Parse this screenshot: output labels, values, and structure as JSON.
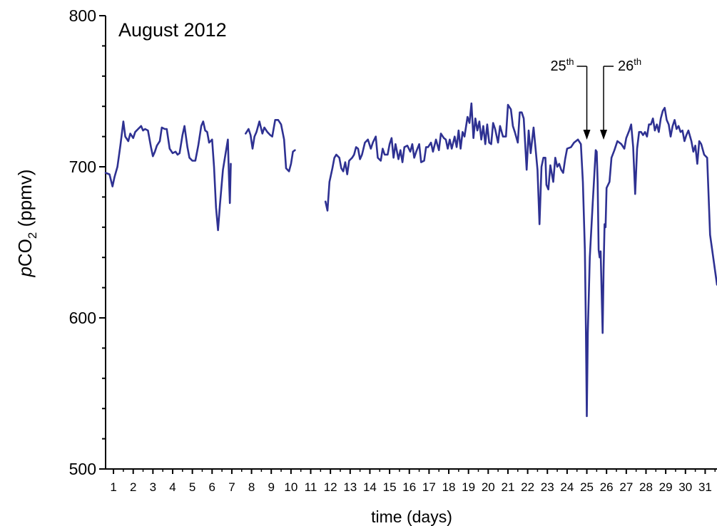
{
  "chart_data": {
    "type": "line",
    "title": "August 2012",
    "xlabel": "time (days)",
    "ylabel": {
      "italic_prefix": "p",
      "main": "CO",
      "subscript": "2",
      "suffix": " (ppmv)"
    },
    "xlim": [
      0.6,
      31.6
    ],
    "ylim": [
      500,
      800
    ],
    "y_major_ticks": [
      500,
      600,
      700,
      800
    ],
    "y_minor_step": 20,
    "x_ticks": [
      1,
      2,
      3,
      4,
      5,
      6,
      7,
      8,
      9,
      10,
      11,
      12,
      13,
      14,
      15,
      16,
      17,
      18,
      19,
      20,
      21,
      22,
      23,
      24,
      25,
      26,
      27,
      28,
      29,
      30,
      31
    ],
    "x_tick_labels": [
      "1",
      "2",
      "3",
      "4",
      "5",
      "6",
      "7",
      "8",
      "9",
      "10",
      "11",
      "12",
      "13",
      "14",
      "15",
      "16",
      "17",
      "18",
      "19",
      "20",
      "21",
      "22",
      "23",
      "24",
      "25",
      "26",
      "27",
      "28",
      "29",
      "30",
      "31"
    ],
    "grid": false,
    "color": "#2E3192",
    "annotations": [
      {
        "base": "25",
        "sup": "th",
        "x": 25.0
      },
      {
        "base": "26",
        "sup": "th",
        "x": 25.85
      }
    ],
    "series": [
      {
        "segments": [
          [
            [
              0.6,
              696
            ],
            [
              0.8,
              695
            ],
            [
              0.95,
              687
            ],
            [
              1.05,
              693
            ],
            [
              1.2,
              700
            ],
            [
              1.35,
              714
            ],
            [
              1.5,
              730
            ],
            [
              1.6,
              720
            ],
            [
              1.75,
              717
            ],
            [
              1.85,
              722
            ],
            [
              2.0,
              719
            ],
            [
              2.1,
              723
            ],
            [
              2.25,
              725
            ],
            [
              2.4,
              727
            ],
            [
              2.5,
              724
            ],
            [
              2.6,
              725
            ],
            [
              2.75,
              724
            ],
            [
              2.9,
              713
            ],
            [
              3.0,
              707
            ],
            [
              3.1,
              710
            ],
            [
              3.2,
              714
            ],
            [
              3.35,
              717
            ],
            [
              3.45,
              726
            ],
            [
              3.6,
              725
            ],
            [
              3.7,
              725
            ],
            [
              3.85,
              712
            ],
            [
              4.0,
              709
            ],
            [
              4.15,
              710
            ],
            [
              4.25,
              708
            ],
            [
              4.35,
              709
            ],
            [
              4.5,
              721
            ],
            [
              4.6,
              727
            ],
            [
              4.75,
              713
            ],
            [
              4.85,
              706
            ],
            [
              5.0,
              704
            ],
            [
              5.15,
              704
            ],
            [
              5.3,
              714
            ],
            [
              5.45,
              727
            ],
            [
              5.55,
              730
            ],
            [
              5.65,
              724
            ],
            [
              5.75,
              723
            ],
            [
              5.85,
              716
            ],
            [
              6.0,
              718
            ],
            [
              6.1,
              700
            ],
            [
              6.2,
              673
            ],
            [
              6.3,
              658
            ],
            [
              6.4,
              675
            ],
            [
              6.55,
              698
            ],
            [
              6.7,
              710
            ],
            [
              6.8,
              718
            ],
            [
              6.85,
              695
            ],
            [
              6.9,
              676
            ],
            [
              6.95,
              702
            ]
          ],
          [
            [
              7.7,
              722
            ],
            [
              7.85,
              725
            ],
            [
              7.95,
              721
            ],
            [
              8.05,
              712
            ],
            [
              8.15,
              720
            ],
            [
              8.25,
              723
            ],
            [
              8.4,
              730
            ],
            [
              8.55,
              722
            ],
            [
              8.65,
              726
            ],
            [
              8.8,
              723
            ],
            [
              8.95,
              721
            ],
            [
              9.05,
              720
            ],
            [
              9.2,
              731
            ],
            [
              9.35,
              731
            ],
            [
              9.5,
              728
            ],
            [
              9.65,
              718
            ],
            [
              9.75,
              699
            ],
            [
              9.9,
              697
            ],
            [
              10.0,
              702
            ],
            [
              10.1,
              710
            ],
            [
              10.2,
              711
            ]
          ],
          [
            [
              11.75,
              677
            ],
            [
              11.85,
              671
            ],
            [
              11.95,
              690
            ],
            [
              12.1,
              699
            ],
            [
              12.2,
              706
            ],
            [
              12.3,
              708
            ],
            [
              12.45,
              706
            ],
            [
              12.55,
              699
            ],
            [
              12.65,
              697
            ],
            [
              12.75,
              703
            ],
            [
              12.85,
              695
            ],
            [
              12.95,
              704
            ],
            [
              13.1,
              706
            ],
            [
              13.2,
              708
            ],
            [
              13.3,
              713
            ],
            [
              13.4,
              712
            ],
            [
              13.5,
              705
            ],
            [
              13.6,
              708
            ],
            [
              13.75,
              716
            ],
            [
              13.9,
              718
            ],
            [
              14.05,
              712
            ],
            [
              14.15,
              716
            ],
            [
              14.3,
              720
            ],
            [
              14.4,
              706
            ],
            [
              14.55,
              704
            ],
            [
              14.65,
              712
            ],
            [
              14.75,
              708
            ],
            [
              14.9,
              708
            ],
            [
              15.0,
              715
            ],
            [
              15.1,
              719
            ],
            [
              15.2,
              706
            ],
            [
              15.3,
              715
            ],
            [
              15.45,
              705
            ],
            [
              15.55,
              711
            ],
            [
              15.65,
              703
            ],
            [
              15.75,
              713
            ],
            [
              15.9,
              714
            ],
            [
              16.05,
              710
            ],
            [
              16.15,
              715
            ],
            [
              16.25,
              706
            ],
            [
              16.35,
              710
            ],
            [
              16.5,
              715
            ],
            [
              16.6,
              703
            ],
            [
              16.75,
              704
            ],
            [
              16.85,
              713
            ],
            [
              16.95,
              713
            ],
            [
              17.1,
              716
            ],
            [
              17.2,
              710
            ],
            [
              17.35,
              718
            ],
            [
              17.5,
              711
            ],
            [
              17.6,
              722
            ],
            [
              17.75,
              719
            ],
            [
              17.85,
              718
            ],
            [
              17.95,
              712
            ],
            [
              18.05,
              718
            ],
            [
              18.15,
              712
            ],
            [
              18.3,
              720
            ],
            [
              18.4,
              713
            ],
            [
              18.5,
              724
            ],
            [
              18.6,
              712
            ],
            [
              18.7,
              723
            ],
            [
              18.8,
              720
            ],
            [
              18.95,
              733
            ],
            [
              19.05,
              729
            ],
            [
              19.15,
              742
            ],
            [
              19.25,
              719
            ],
            [
              19.35,
              732
            ],
            [
              19.45,
              724
            ],
            [
              19.55,
              730
            ],
            [
              19.65,
              718
            ],
            [
              19.75,
              727
            ],
            [
              19.85,
              715
            ],
            [
              19.95,
              728
            ],
            [
              20.05,
              716
            ],
            [
              20.15,
              715
            ],
            [
              20.25,
              729
            ],
            [
              20.35,
              725
            ],
            [
              20.5,
              716
            ],
            [
              20.6,
              727
            ],
            [
              20.75,
              720
            ],
            [
              20.9,
              720
            ],
            [
              21.0,
              741
            ],
            [
              21.15,
              738
            ],
            [
              21.25,
              727
            ],
            [
              21.35,
              723
            ],
            [
              21.5,
              716
            ],
            [
              21.6,
              736
            ],
            [
              21.7,
              736
            ],
            [
              21.8,
              732
            ],
            [
              21.95,
              698
            ],
            [
              22.05,
              724
            ],
            [
              22.15,
              709
            ],
            [
              22.3,
              726
            ],
            [
              22.4,
              712
            ],
            [
              22.5,
              698
            ],
            [
              22.6,
              662
            ],
            [
              22.7,
              700
            ],
            [
              22.8,
              706
            ],
            [
              22.9,
              706
            ],
            [
              22.95,
              688
            ],
            [
              23.05,
              685
            ],
            [
              23.15,
              701
            ],
            [
              23.3,
              690
            ],
            [
              23.4,
              706
            ],
            [
              23.5,
              700
            ],
            [
              23.6,
              702
            ],
            [
              23.7,
              698
            ],
            [
              23.8,
              696
            ],
            [
              23.9,
              705
            ],
            [
              24.0,
              712
            ],
            [
              24.2,
              713
            ],
            [
              24.35,
              716
            ],
            [
              24.55,
              718
            ],
            [
              24.7,
              715
            ],
            [
              24.8,
              690
            ],
            [
              24.9,
              645
            ],
            [
              24.95,
              595
            ],
            [
              25.0,
              535
            ],
            [
              25.05,
              590
            ],
            [
              25.15,
              640
            ],
            [
              25.3,
              676
            ],
            [
              25.45,
              711
            ],
            [
              25.5,
              710
            ],
            [
              25.55,
              690
            ],
            [
              25.6,
              645
            ],
            [
              25.65,
              640
            ],
            [
              25.7,
              644
            ],
            [
              25.8,
              590
            ],
            [
              25.85,
              631
            ],
            [
              25.9,
              662
            ],
            [
              25.95,
              660
            ],
            [
              26.0,
              686
            ],
            [
              26.15,
              690
            ],
            [
              26.25,
              706
            ],
            [
              26.4,
              711
            ],
            [
              26.55,
              717
            ],
            [
              26.75,
              715
            ],
            [
              26.9,
              712
            ],
            [
              27.0,
              719
            ],
            [
              27.15,
              724
            ],
            [
              27.25,
              728
            ],
            [
              27.35,
              713
            ],
            [
              27.45,
              682
            ],
            [
              27.55,
              712
            ],
            [
              27.65,
              723
            ],
            [
              27.75,
              723
            ],
            [
              27.85,
              721
            ],
            [
              27.95,
              723
            ],
            [
              28.05,
              720
            ],
            [
              28.15,
              728
            ],
            [
              28.25,
              728
            ],
            [
              28.35,
              732
            ],
            [
              28.45,
              724
            ],
            [
              28.55,
              728
            ],
            [
              28.65,
              723
            ],
            [
              28.75,
              732
            ],
            [
              28.85,
              737
            ],
            [
              28.95,
              739
            ],
            [
              29.05,
              731
            ],
            [
              29.15,
              728
            ],
            [
              29.25,
              720
            ],
            [
              29.35,
              727
            ],
            [
              29.45,
              731
            ],
            [
              29.55,
              725
            ],
            [
              29.65,
              727
            ],
            [
              29.75,
              723
            ],
            [
              29.85,
              724
            ],
            [
              29.95,
              717
            ],
            [
              30.05,
              721
            ],
            [
              30.15,
              724
            ],
            [
              30.3,
              717
            ],
            [
              30.4,
              710
            ],
            [
              30.5,
              714
            ],
            [
              30.6,
              702
            ],
            [
              30.7,
              717
            ],
            [
              30.8,
              715
            ],
            [
              30.95,
              708
            ],
            [
              31.1,
              706
            ],
            [
              31.25,
              655
            ],
            [
              31.6,
              622
            ]
          ]
        ]
      }
    ]
  }
}
